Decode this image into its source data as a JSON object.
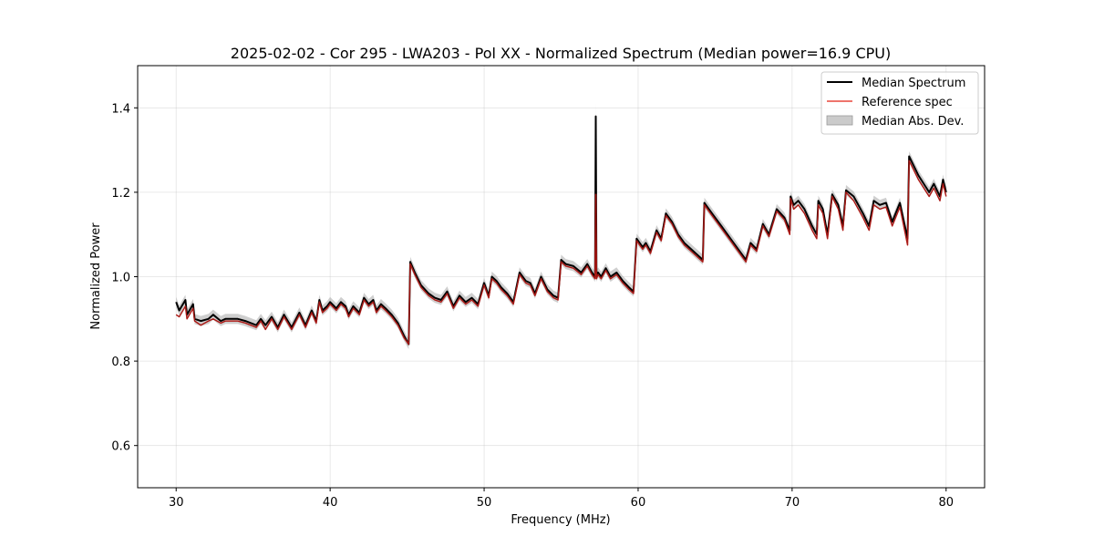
{
  "chart_data": {
    "type": "line",
    "title": "2025-02-02 - Cor 295 - LWA203 - Pol XX - Normalized Spectrum (Median power=16.9 CPU)",
    "xlabel": "Frequency (MHz)",
    "ylabel": "Normalized Power",
    "xlim": [
      27.5,
      82.5
    ],
    "ylim": [
      0.5,
      1.5
    ],
    "xticks": [
      30,
      40,
      50,
      60,
      70,
      80
    ],
    "yticks": [
      0.6,
      0.8,
      1.0,
      1.2,
      1.4
    ],
    "xtick_labels": [
      "30",
      "40",
      "50",
      "60",
      "70",
      "80"
    ],
    "ytick_labels": [
      "0.6",
      "0.8",
      "1.0",
      "1.2",
      "1.4"
    ],
    "grid": true,
    "legend_position": "top-right",
    "legend": [
      "Median Spectrum",
      "Reference spec",
      "Median Abs. Dev."
    ],
    "colors": {
      "median": "#000000",
      "reference": "#e8463c",
      "mad": "#a0a0a0",
      "overlap": "#8b0000"
    },
    "series": [
      {
        "name": "Median Spectrum",
        "x": [
          30,
          30.2,
          30.6,
          30.7,
          31.1,
          31.2,
          31.6,
          32.1,
          32.4,
          32.9,
          33.2,
          34.0,
          34.5,
          35.2,
          35.5,
          35.8,
          36.2,
          36.6,
          37.0,
          37.5,
          38.0,
          38.4,
          38.8,
          39.1,
          39.3,
          39.5,
          39.8,
          40.0,
          40.4,
          40.7,
          41.0,
          41.2,
          41.5,
          41.9,
          42.2,
          42.5,
          42.8,
          43.0,
          43.3,
          43.6,
          44.0,
          44.4,
          44.8,
          45.1,
          45.2,
          45.5,
          45.9,
          46.4,
          46.8,
          47.2,
          47.6,
          48.0,
          48.4,
          48.8,
          49.2,
          49.6,
          50.0,
          50.3,
          50.5,
          50.8,
          51.1,
          51.5,
          51.9,
          52.3,
          52.7,
          53.0,
          53.3,
          53.7,
          54.1,
          54.5,
          54.8,
          55.0,
          55.3,
          55.8,
          56.3,
          56.7,
          57.0,
          57.2,
          57.25,
          57.3,
          57.4,
          57.6,
          57.9,
          58.2,
          58.6,
          59.0,
          59.4,
          59.7,
          59.9,
          60.3,
          60.5,
          60.8,
          61.2,
          61.5,
          61.8,
          62.2,
          62.6,
          63.0,
          63.6,
          64.2,
          64.3,
          64.8,
          65.4,
          66.0,
          66.6,
          67.0,
          67.3,
          67.7,
          68.1,
          68.5,
          69.0,
          69.5,
          69.85,
          69.9,
          70.1,
          70.4,
          70.8,
          71.3,
          71.6,
          71.7,
          72.0,
          72.3,
          72.6,
          73.0,
          73.3,
          73.5,
          74.0,
          74.6,
          75.0,
          75.3,
          75.7,
          76.1,
          76.5,
          77.0,
          77.5,
          77.6,
          78.2,
          78.9,
          79.2,
          79.6,
          79.8,
          80.0
        ],
        "y": [
          0.94,
          0.92,
          0.945,
          0.91,
          0.935,
          0.9,
          0.895,
          0.9,
          0.91,
          0.895,
          0.9,
          0.9,
          0.895,
          0.885,
          0.9,
          0.885,
          0.905,
          0.88,
          0.91,
          0.88,
          0.915,
          0.885,
          0.92,
          0.895,
          0.945,
          0.92,
          0.93,
          0.94,
          0.925,
          0.94,
          0.93,
          0.91,
          0.93,
          0.915,
          0.95,
          0.935,
          0.945,
          0.92,
          0.935,
          0.925,
          0.91,
          0.89,
          0.86,
          0.84,
          1.035,
          1.01,
          0.98,
          0.96,
          0.95,
          0.945,
          0.965,
          0.93,
          0.955,
          0.94,
          0.95,
          0.935,
          0.985,
          0.955,
          1.0,
          0.99,
          0.975,
          0.96,
          0.94,
          1.01,
          0.99,
          0.985,
          0.96,
          1.0,
          0.97,
          0.955,
          0.95,
          1.04,
          1.03,
          1.025,
          1.01,
          1.03,
          1.01,
          1.0,
          1.38,
          1.0,
          1.01,
          1.0,
          1.02,
          1.0,
          1.01,
          0.99,
          0.975,
          0.965,
          1.09,
          1.07,
          1.08,
          1.06,
          1.11,
          1.09,
          1.15,
          1.13,
          1.1,
          1.08,
          1.06,
          1.04,
          1.175,
          1.15,
          1.12,
          1.09,
          1.06,
          1.04,
          1.08,
          1.065,
          1.125,
          1.1,
          1.16,
          1.14,
          1.11,
          1.19,
          1.17,
          1.18,
          1.16,
          1.12,
          1.1,
          1.18,
          1.16,
          1.1,
          1.195,
          1.17,
          1.12,
          1.205,
          1.19,
          1.15,
          1.12,
          1.18,
          1.17,
          1.175,
          1.13,
          1.175,
          1.09,
          1.285,
          1.24,
          1.2,
          1.22,
          1.19,
          1.23,
          1.2
        ],
        "color": "#000000"
      },
      {
        "name": "Reference spec",
        "x": [
          30,
          30.2,
          30.6,
          30.7,
          31.1,
          31.2,
          31.6,
          32.1,
          32.4,
          32.9,
          33.2,
          34.0,
          34.5,
          35.2,
          35.5,
          35.8,
          36.2,
          36.6,
          37.0,
          37.5,
          38.0,
          38.4,
          38.8,
          39.1,
          39.3,
          39.5,
          39.8,
          40.0,
          40.4,
          40.7,
          41.0,
          41.2,
          41.5,
          41.9,
          42.2,
          42.5,
          42.8,
          43.0,
          43.3,
          43.6,
          44.0,
          44.4,
          44.8,
          45.1,
          45.2,
          45.5,
          45.9,
          46.4,
          46.8,
          47.2,
          47.6,
          48.0,
          48.4,
          48.8,
          49.2,
          49.6,
          50.0,
          50.3,
          50.5,
          50.8,
          51.1,
          51.5,
          51.9,
          52.3,
          52.7,
          53.0,
          53.3,
          53.7,
          54.1,
          54.5,
          54.8,
          55.0,
          55.3,
          55.8,
          56.3,
          56.7,
          57.0,
          57.2,
          57.25,
          57.3,
          57.4,
          57.6,
          57.9,
          58.2,
          58.6,
          59.0,
          59.4,
          59.7,
          59.9,
          60.3,
          60.5,
          60.8,
          61.2,
          61.5,
          61.8,
          62.2,
          62.6,
          63.0,
          63.6,
          64.2,
          64.3,
          64.8,
          65.4,
          66.0,
          66.6,
          67.0,
          67.3,
          67.7,
          68.1,
          68.5,
          69.0,
          69.5,
          69.85,
          69.9,
          70.1,
          70.4,
          70.8,
          71.3,
          71.6,
          71.7,
          72.0,
          72.3,
          72.6,
          73.0,
          73.3,
          73.5,
          74.0,
          74.6,
          75.0,
          75.3,
          75.7,
          76.1,
          76.5,
          77.0,
          77.5,
          77.6,
          78.2,
          78.9,
          79.2,
          79.6,
          79.8,
          80.0
        ],
        "y": [
          0.91,
          0.905,
          0.93,
          0.9,
          0.925,
          0.895,
          0.885,
          0.895,
          0.9,
          0.89,
          0.895,
          0.895,
          0.89,
          0.88,
          0.895,
          0.875,
          0.9,
          0.875,
          0.905,
          0.875,
          0.91,
          0.88,
          0.915,
          0.89,
          0.94,
          0.915,
          0.925,
          0.935,
          0.92,
          0.935,
          0.925,
          0.905,
          0.925,
          0.91,
          0.945,
          0.93,
          0.94,
          0.915,
          0.93,
          0.92,
          0.905,
          0.885,
          0.855,
          0.84,
          1.03,
          1.005,
          0.975,
          0.955,
          0.945,
          0.94,
          0.96,
          0.925,
          0.95,
          0.935,
          0.945,
          0.93,
          0.98,
          0.95,
          0.995,
          0.985,
          0.97,
          0.955,
          0.935,
          1.005,
          0.985,
          0.98,
          0.955,
          0.995,
          0.965,
          0.95,
          0.945,
          1.035,
          1.025,
          1.02,
          1.005,
          1.025,
          1.005,
          0.995,
          1.195,
          0.995,
          1.005,
          0.995,
          1.015,
          0.995,
          1.005,
          0.985,
          0.97,
          0.96,
          1.085,
          1.065,
          1.075,
          1.055,
          1.105,
          1.085,
          1.145,
          1.125,
          1.095,
          1.075,
          1.055,
          1.035,
          1.17,
          1.145,
          1.115,
          1.085,
          1.055,
          1.035,
          1.075,
          1.06,
          1.12,
          1.095,
          1.155,
          1.135,
          1.1,
          1.185,
          1.16,
          1.17,
          1.15,
          1.11,
          1.09,
          1.17,
          1.15,
          1.09,
          1.19,
          1.16,
          1.11,
          1.2,
          1.18,
          1.14,
          1.11,
          1.17,
          1.16,
          1.165,
          1.12,
          1.165,
          1.075,
          1.275,
          1.23,
          1.19,
          1.21,
          1.18,
          1.22,
          1.19
        ],
        "color": "#e8463c"
      },
      {
        "name": "Median Abs. Dev.",
        "spread": 0.012,
        "spike_spread": 0.03,
        "color": "#a0a0a0"
      }
    ]
  }
}
